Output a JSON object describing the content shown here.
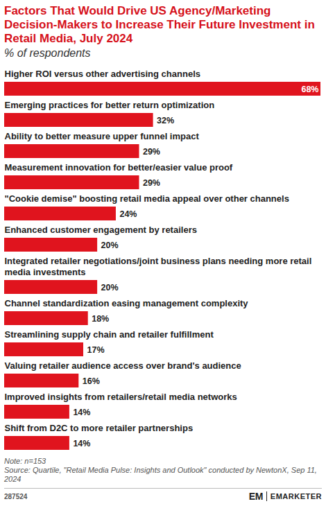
{
  "chart_data": {
    "type": "bar",
    "orientation": "horizontal",
    "title": "Factors That Would Drive US Agency/Marketing Decision-Makers to Increase Their Future Investment in Retail Media, July 2024",
    "subtitle": "% of respondents",
    "categories": [
      "Higher ROI versus other advertising channels",
      "Emerging practices for better return optimization",
      "Ability to better measure upper funnel impact",
      "Measurement innovation for better/easier value proof",
      "\"Cookie demise\" boosting retail media appeal over other channels",
      "Enhanced customer engagement by retailers",
      "Integrated retailer negotiations/joint business plans needing more retail media investments",
      "Channel standardization easing management complexity",
      "Streamlining supply chain and retailer fulfillment",
      "Valuing retailer audience access over brand's audience",
      "Improved insights from retailers/retail media networks",
      "Shift from D2C to more retailer partnerships"
    ],
    "values": [
      68,
      32,
      29,
      29,
      24,
      20,
      20,
      18,
      17,
      16,
      14,
      14
    ],
    "value_labels": [
      "68%",
      "32%",
      "29%",
      "29%",
      "24%",
      "20%",
      "20%",
      "18%",
      "17%",
      "16%",
      "14%",
      "14%"
    ],
    "data_labels": true,
    "tick_labels": false,
    "grid": false,
    "color": "#e0141e",
    "xlim": [
      0,
      68
    ],
    "note": "Note: n=153",
    "source": "Source: Quartile, \"Retail Media Pulse: Insights and Outlook\" conducted by NewtonX, Sep 11, 2024",
    "chart_id": "287524",
    "logo": "EM",
    "brand": "EMARKETER"
  }
}
